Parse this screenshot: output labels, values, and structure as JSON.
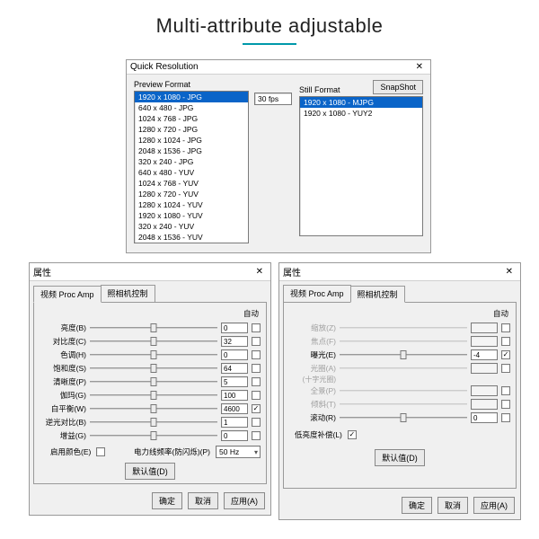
{
  "page_title": "Multi-attribute adjustable",
  "accent_color": "#0099aa",
  "win1": {
    "title": "Quick Resolution",
    "preview_label": "Preview Format",
    "still_label": "Still Format",
    "snapshot_label": "SnapShot",
    "fps": "30 fps",
    "preview": [
      "1920 x 1080 - JPG",
      "640 x 480 - JPG",
      "1024 x  768 - JPG",
      "1280 x  720 - JPG",
      "1280 x 1024 - JPG",
      "2048 x 1536 - JPG",
      "320 x  240 - JPG",
      "640 x  480 - YUV",
      "1024 x  768 - YUV",
      "1280 x  720 - YUV",
      "1280 x 1024 - YUV",
      "1920 x 1080 - YUV",
      "320 x  240 - YUV",
      "2048 x 1536 - YUV"
    ],
    "preview_sel": 0,
    "still": [
      "1920 x 1080 - MJPG",
      "1920 x 1080 - YUY2"
    ],
    "still_sel": 0
  },
  "win2": {
    "title": "属性",
    "tabs": [
      "视频 Proc Amp",
      "照相机控制"
    ],
    "active_tab": 0,
    "auto_header": "自动",
    "rows": [
      {
        "label": "亮度(B)",
        "val": "0",
        "pos": 0.5,
        "dim": false,
        "chk": false
      },
      {
        "label": "对比度(C)",
        "val": "32",
        "pos": 0.5,
        "dim": false,
        "chk": false
      },
      {
        "label": "色调(H)",
        "val": "0",
        "pos": 0.5,
        "dim": false,
        "chk": false
      },
      {
        "label": "饱和度(S)",
        "val": "64",
        "pos": 0.5,
        "dim": false,
        "chk": false
      },
      {
        "label": "清晰度(P)",
        "val": "5",
        "pos": 0.5,
        "dim": false,
        "chk": false
      },
      {
        "label": "伽玛(G)",
        "val": "100",
        "pos": 0.5,
        "dim": false,
        "chk": false
      },
      {
        "label": "白平衡(W)",
        "val": "4600",
        "pos": 0.5,
        "dim": false,
        "chk": true
      },
      {
        "label": "逆光对比(B)",
        "val": "1",
        "pos": 0.5,
        "dim": false,
        "chk": false
      },
      {
        "label": "增益(G)",
        "val": "0",
        "pos": 0.5,
        "dim": false,
        "chk": false
      }
    ],
    "color_enable": "启用颜色(E)",
    "powerline_label": "电力线频率(防闪烁)(P)",
    "powerline_value": "50 Hz",
    "default_btn": "默认值(D)",
    "ok": "确定",
    "cancel": "取消",
    "apply": "应用(A)"
  },
  "win3": {
    "title": "属性",
    "tabs": [
      "视频 Proc Amp",
      "照相机控制"
    ],
    "active_tab": 1,
    "auto_header": "自动",
    "rows": [
      {
        "label": "缩放(Z)",
        "val": "",
        "pos": 0.5,
        "dim": true,
        "chk": false
      },
      {
        "label": "焦点(F)",
        "val": "",
        "pos": 0.5,
        "dim": true,
        "chk": false
      },
      {
        "label": "曝光(E)",
        "val": "-4",
        "pos": 0.5,
        "dim": false,
        "chk": true
      },
      {
        "label": "光圈(A)\n(十字光圈)",
        "val": "",
        "pos": 0.5,
        "dim": true,
        "chk": false
      },
      {
        "label": "全景(P)",
        "val": "",
        "pos": 0.5,
        "dim": true,
        "chk": false
      },
      {
        "label": "倾斜(T)",
        "val": "",
        "pos": 0.5,
        "dim": true,
        "chk": false
      },
      {
        "label": "滚动(R)",
        "val": "0",
        "pos": 0.5,
        "dim": false,
        "chk": false
      }
    ],
    "lowlight_label": "低亮度补偿(L)",
    "lowlight_chk": true,
    "default_btn": "默认值(D)",
    "ok": "确定",
    "cancel": "取消",
    "apply": "应用(A)"
  }
}
